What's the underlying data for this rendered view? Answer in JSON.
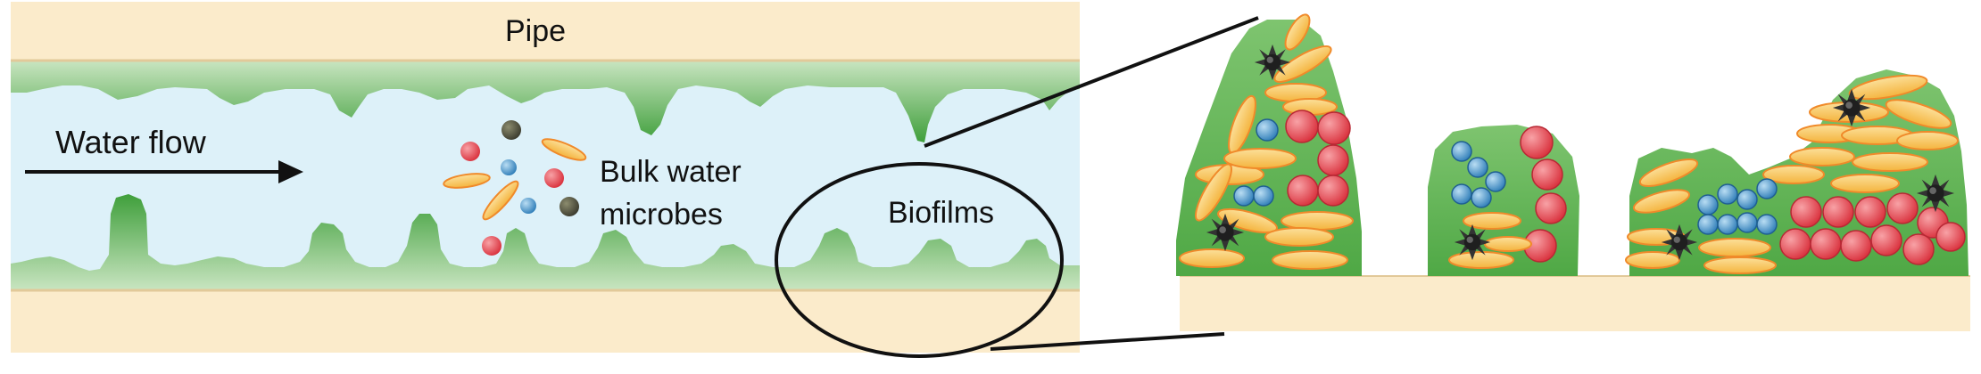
{
  "labels": {
    "pipe": "Pipe",
    "water_flow": "Water flow",
    "bulk_water_line1": "Bulk water",
    "bulk_water_line2": "microbes",
    "biofilms": "Biofilms"
  },
  "colors": {
    "pipe_wall": "#FBEBCB",
    "pipe_edge": "#E2C999",
    "water": "#DDF1F9",
    "biofilm_dark": "#3E9E3A",
    "biofilm_light": "#C5E3BE",
    "red_cell": "#E8434F",
    "blue_cell": "#3E8FC7",
    "orange_cell": "#F7BB48",
    "dark_cell": "#3A3A3A"
  }
}
